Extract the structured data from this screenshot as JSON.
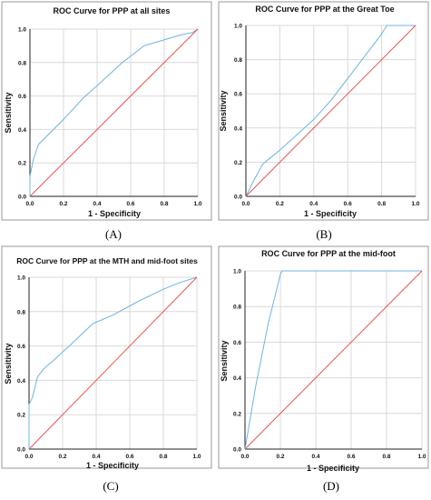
{
  "colors": {
    "roc": "#6cb4e4",
    "reference": "#ef5350",
    "grid": "#d9d9d9",
    "axis": "#222222",
    "text": "#111111"
  },
  "chart_data": [
    {
      "type": "line",
      "panel_label": "(A)",
      "title": "ROC Curve for PPP at all sites",
      "xlabel": "1 - Specificity",
      "ylabel": "Sensitivity",
      "xlim": [
        0,
        1
      ],
      "ylim": [
        0,
        1
      ],
      "x_ticks": [
        "0.0",
        "0.2",
        "0.4",
        "0.6",
        "0.8",
        "1.0"
      ],
      "y_ticks": [
        "0.0",
        "0.2",
        "0.4",
        "0.6",
        "0.8",
        "1.0"
      ],
      "grid": true,
      "series": [
        {
          "role": "roc",
          "points": [
            [
              0,
              0
            ],
            [
              0,
              0.12
            ],
            [
              0.02,
              0.22
            ],
            [
              0.05,
              0.31
            ],
            [
              0.12,
              0.38
            ],
            [
              0.2,
              0.46
            ],
            [
              0.32,
              0.59
            ],
            [
              0.42,
              0.68
            ],
            [
              0.55,
              0.8
            ],
            [
              0.68,
              0.9
            ],
            [
              0.78,
              0.93
            ],
            [
              0.88,
              0.96
            ],
            [
              0.92,
              0.97
            ],
            [
              0.97,
              0.98
            ],
            [
              1,
              1
            ]
          ]
        },
        {
          "role": "reference",
          "points": [
            [
              0,
              0
            ],
            [
              1,
              1
            ]
          ]
        }
      ]
    },
    {
      "type": "line",
      "panel_label": "(B)",
      "title": "ROC Curve for PPP at the Great Toe",
      "xlabel": "1 - Specificity",
      "ylabel": "Sensitivity",
      "xlim": [
        0,
        1
      ],
      "ylim": [
        0,
        1
      ],
      "x_ticks": [
        "0.0",
        "0.2",
        "0.4",
        "0.6",
        "0.8",
        "1.0"
      ],
      "y_ticks": [
        "0.0",
        "0.2",
        "0.4",
        "0.6",
        "0.8",
        "1.0"
      ],
      "grid": true,
      "series": [
        {
          "role": "roc",
          "points": [
            [
              0,
              0
            ],
            [
              0.05,
              0.1
            ],
            [
              0.1,
              0.19
            ],
            [
              0.2,
              0.27
            ],
            [
              0.3,
              0.36
            ],
            [
              0.4,
              0.45
            ],
            [
              0.5,
              0.56
            ],
            [
              0.6,
              0.69
            ],
            [
              0.7,
              0.82
            ],
            [
              0.8,
              0.95
            ],
            [
              0.83,
              1
            ],
            [
              1,
              1
            ]
          ]
        },
        {
          "role": "reference",
          "points": [
            [
              0,
              0
            ],
            [
              1,
              1
            ]
          ]
        }
      ]
    },
    {
      "type": "line",
      "panel_label": "(C)",
      "title": "ROC Curve for PPP at the MTH and mid-foot sites",
      "xlabel": "1 - Specificity",
      "ylabel": "Sensitivity",
      "xlim": [
        0,
        1
      ],
      "ylim": [
        0,
        1
      ],
      "x_ticks": [
        "0.0",
        "0.2",
        "0.4",
        "0.6",
        "0.8",
        "1.0"
      ],
      "y_ticks": [
        "0.0",
        "0.2",
        "0.4",
        "0.6",
        "0.8",
        "1.0"
      ],
      "grid": true,
      "series": [
        {
          "role": "roc",
          "points": [
            [
              0,
              0
            ],
            [
              0,
              0.26
            ],
            [
              0.02,
              0.3
            ],
            [
              0.05,
              0.42
            ],
            [
              0.09,
              0.47
            ],
            [
              0.15,
              0.52
            ],
            [
              0.25,
              0.61
            ],
            [
              0.38,
              0.73
            ],
            [
              0.5,
              0.78
            ],
            [
              0.65,
              0.86
            ],
            [
              0.8,
              0.93
            ],
            [
              0.9,
              0.97
            ],
            [
              1,
              1
            ]
          ]
        },
        {
          "role": "reference",
          "points": [
            [
              0,
              0
            ],
            [
              1,
              1
            ]
          ]
        }
      ]
    },
    {
      "type": "line",
      "panel_label": "(D)",
      "title": "ROC Curve for PPP at the mid-foot",
      "xlabel": "1 - Specificity",
      "ylabel": "Sensitivity",
      "xlim": [
        0,
        1
      ],
      "ylim": [
        0,
        1
      ],
      "x_ticks": [
        "0.0",
        "0.2",
        "0.4",
        "0.6",
        "0.8",
        "1.0"
      ],
      "y_ticks": [
        "0.0",
        "0.2",
        "0.4",
        "0.6",
        "0.8",
        "1.0"
      ],
      "grid": true,
      "series": [
        {
          "role": "roc",
          "points": [
            [
              0,
              0
            ],
            [
              0.06,
              0.35
            ],
            [
              0.13,
              0.7
            ],
            [
              0.2,
              0.98
            ],
            [
              0.21,
              1
            ],
            [
              1,
              1
            ]
          ]
        },
        {
          "role": "reference",
          "points": [
            [
              0,
              0
            ],
            [
              1,
              1
            ]
          ]
        }
      ]
    }
  ]
}
